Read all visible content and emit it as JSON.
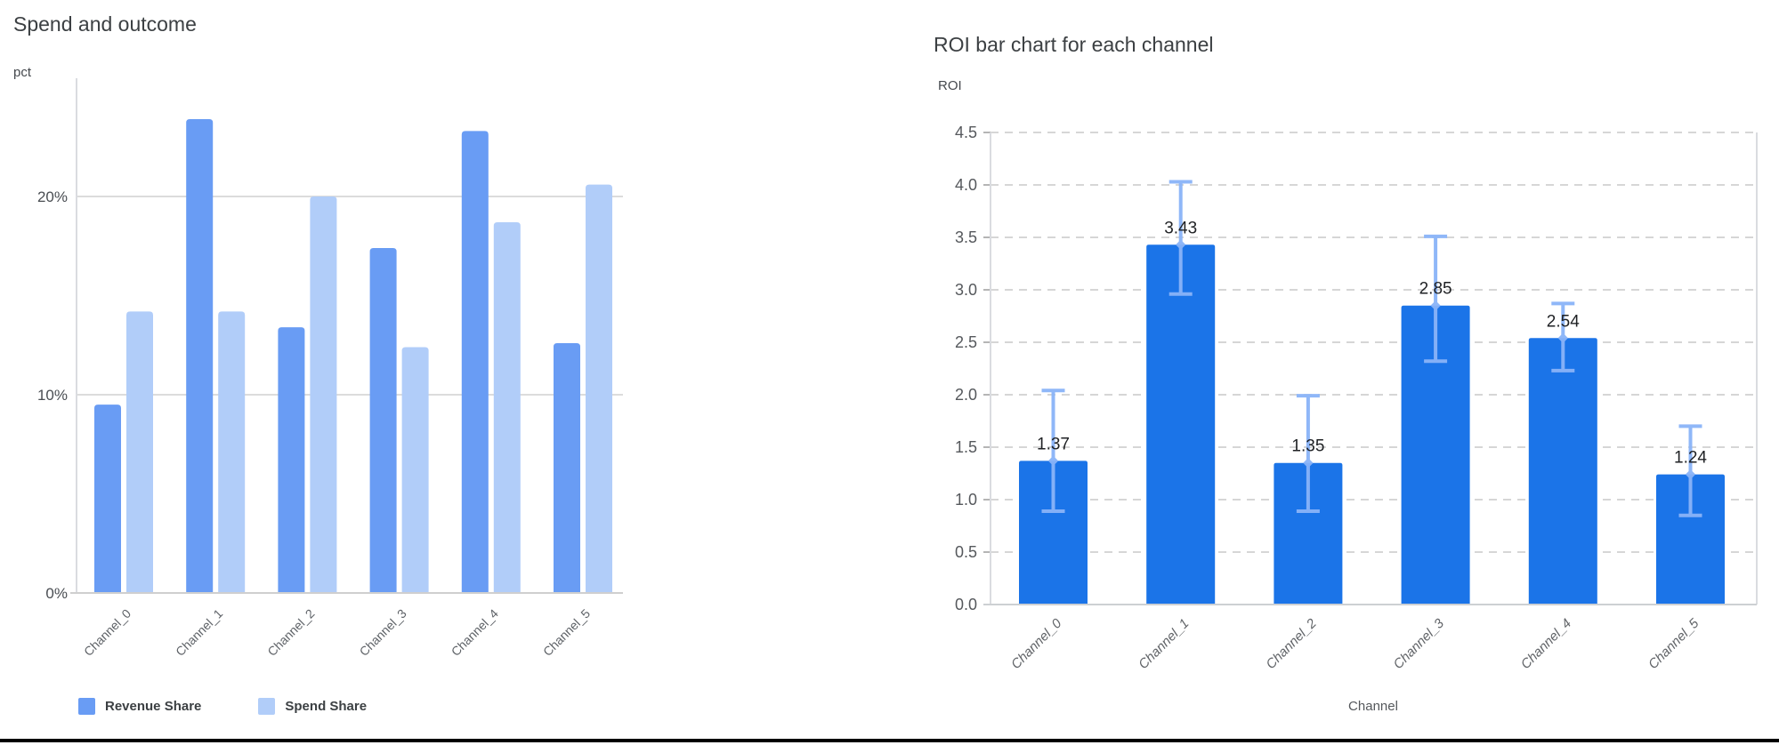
{
  "chart_data": [
    {
      "type": "bar",
      "title": "Spend and outcome",
      "xlabel": "",
      "ylabel": "pct",
      "categories": [
        "Channel_0",
        "Channel_1",
        "Channel_2",
        "Channel_3",
        "Channel_4",
        "Channel_5"
      ],
      "series": [
        {
          "name": "Revenue Share",
          "color": "#699cf4",
          "values": [
            9.5,
            23.9,
            13.4,
            17.4,
            23.3,
            12.6
          ]
        },
        {
          "name": "Spend Share",
          "color": "#b1cdf9",
          "values": [
            14.2,
            14.2,
            20.0,
            12.4,
            18.7,
            20.6
          ]
        }
      ],
      "y_ticks": [
        {
          "value": 0,
          "label": "0%"
        },
        {
          "value": 10,
          "label": "10%"
        },
        {
          "value": 20,
          "label": "20%"
        }
      ],
      "ylim": [
        0,
        25.4
      ],
      "grid": "solid",
      "legend_position": "bottom"
    },
    {
      "type": "bar",
      "title": "ROI bar chart for each channel",
      "xlabel": "Channel",
      "ylabel": "ROI",
      "categories": [
        "Channel_0",
        "Channel_1",
        "Channel_2",
        "Channel_3",
        "Channel_4",
        "Channel_5"
      ],
      "series": [
        {
          "name": "ROI",
          "color": "#1b74e8",
          "values": [
            1.37,
            3.43,
            1.35,
            2.85,
            2.54,
            1.24
          ],
          "error_low": [
            0.89,
            2.96,
            0.89,
            2.32,
            2.23,
            0.85
          ],
          "error_high": [
            2.04,
            4.03,
            1.99,
            3.51,
            2.87,
            1.7
          ],
          "error_color": "#8ab4f8"
        }
      ],
      "bar_labels": [
        "1.37",
        "3.43",
        "1.35",
        "2.85",
        "2.54",
        "1.24"
      ],
      "ylim": [
        0,
        4.5
      ],
      "y_tick_step": 0.5,
      "grid": "dashed",
      "legend_position": "none"
    }
  ],
  "ui": {
    "bottom_border_color": "#000000",
    "title_color": "#3c4043",
    "axis_label_color": "#55585c",
    "gridline_color_left": "#dcdcdc",
    "gridline_color_right": "#c8c8c8"
  }
}
